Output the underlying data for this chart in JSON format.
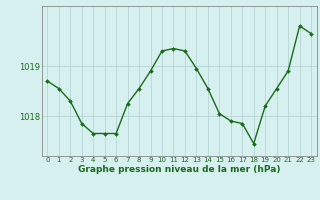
{
  "x": [
    0,
    1,
    2,
    3,
    4,
    5,
    6,
    7,
    8,
    9,
    10,
    11,
    12,
    13,
    14,
    15,
    16,
    17,
    18,
    19,
    20,
    21,
    22,
    23
  ],
  "y": [
    1018.7,
    1018.55,
    1018.3,
    1017.85,
    1017.65,
    1017.65,
    1017.65,
    1018.25,
    1018.55,
    1018.9,
    1019.3,
    1019.35,
    1019.3,
    1018.95,
    1018.55,
    1018.05,
    1017.9,
    1017.85,
    1017.45,
    1018.2,
    1018.55,
    1018.9,
    1019.8,
    1019.65
  ],
  "line_color": "#1a6b1a",
  "marker": "D",
  "marker_size": 2,
  "line_width": 1.0,
  "bg_color": "#d6f0f0",
  "grid_color": "#b0d0d0",
  "xlabel": "Graphe pression niveau de la mer (hPa)",
  "xlabel_fontsize": 6.5,
  "ylabel_ticks": [
    1018,
    1019
  ],
  "ylim": [
    1017.2,
    1020.2
  ],
  "xlim": [
    -0.5,
    23.5
  ],
  "xtick_fontsize": 5,
  "ytick_fontsize": 6,
  "tick_color": "#1a6b1a",
  "spine_color": "#888888"
}
